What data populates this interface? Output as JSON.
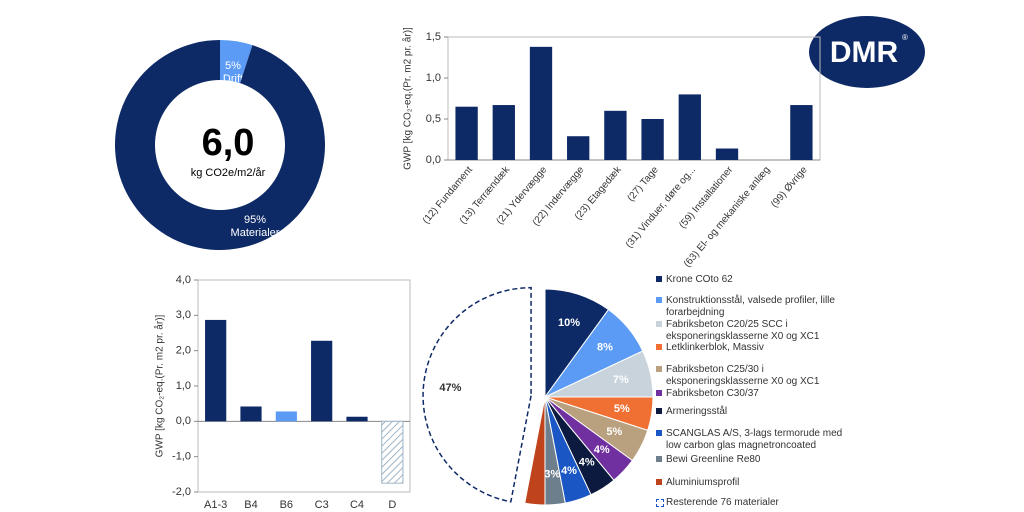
{
  "logo": "DMR",
  "chart_data": [
    {
      "type": "donut",
      "center_value": "6,0",
      "center_unit": "kg CO2e/m2/år",
      "categories": [
        "Drift",
        "Materialer"
      ],
      "values": [
        5,
        95
      ],
      "value_labels": [
        "5%",
        "95%"
      ],
      "colors": [
        "#5b9bf5",
        "#0d2a66"
      ]
    },
    {
      "type": "bar",
      "y_label": "GWP [kg CO₂-eq.(Pr. m2 pr. år)]",
      "categories": [
        "(12) Fundament",
        "(13) Terrændæk",
        "(21) Ydervægge",
        "(22) Indervægge",
        "(23) Etagedæk",
        "(27) Tage",
        "(31) Vinduer, døre og...",
        "(59) Installationer",
        "(63) El- og mekaniske anlæg",
        "(99) Øvrige"
      ],
      "values": [
        0.65,
        0.67,
        1.38,
        0.29,
        0.6,
        0.5,
        0.8,
        0.14,
        0,
        0.67
      ],
      "color": "#0d2a66",
      "ylim": [
        0,
        1.5
      ],
      "yticks": [
        {
          "value": 0,
          "label": "0,0"
        },
        {
          "value": 0.5,
          "label": "0,5"
        },
        {
          "value": 1,
          "label": "1,0"
        },
        {
          "value": 1.5,
          "label": "1,5"
        }
      ]
    },
    {
      "type": "bar",
      "y_label": "GWP [kg CO₂-eq.(Pr. m2 pr. år)]",
      "categories": [
        "A1-3",
        "B4",
        "B6",
        "C3",
        "C4",
        "D"
      ],
      "values": [
        2.87,
        0.42,
        0.28,
        2.28,
        0.13,
        -1.75
      ],
      "colors": [
        "#0d2a66",
        "#0d2a66",
        "#5b9bf5",
        "#0d2a66",
        "#0d2a66",
        "#9fb4c6"
      ],
      "hatched": [
        false,
        false,
        false,
        false,
        false,
        true
      ],
      "ylim": [
        -2,
        4
      ],
      "yticks": [
        {
          "value": -2,
          "label": "-2,0"
        },
        {
          "value": -1,
          "label": "-1,0"
        },
        {
          "value": 0,
          "label": "0,0"
        },
        {
          "value": 1,
          "label": "1,0"
        },
        {
          "value": 2,
          "label": "2,0"
        },
        {
          "value": 3,
          "label": "3,0"
        },
        {
          "value": 4,
          "label": "4,0"
        }
      ]
    },
    {
      "type": "pie",
      "categories": [
        "Krone COto 62",
        "Konstruktionsstål, valsede profiler, lille forarbejdning",
        "Fabriksbeton C20/25 SCC i eksponeringsklasserne X0 og XC1",
        "Letklinkerblok, Massiv",
        "Fabriksbeton C25/30 i eksponeringsklasserne X0 og XC1",
        "Fabriksbeton C30/37",
        "Armeringsstål",
        "SCANGLAS A/S, 3-lags termorude med low carbon glas magnetroncoated",
        "Bewi Greenline Re80",
        "Aluminiumsprofil",
        "Resterende 76 materialer"
      ],
      "values": [
        10,
        8,
        7,
        5,
        5,
        4,
        4,
        4,
        3,
        3,
        47
      ],
      "value_labels": [
        "10%",
        "8%",
        "7%",
        "5%",
        "5%",
        "4%",
        "4%",
        "4%",
        "3%",
        null,
        "47%"
      ],
      "colors": [
        "#0d2a66",
        "#5b9bf5",
        "#c9d3dc",
        "#f07033",
        "#b9a07e",
        "#7030a0",
        "#0b1a3e",
        "#1a56c4",
        "#6d7f8c",
        "#c0441b",
        "#ffffff"
      ]
    }
  ]
}
